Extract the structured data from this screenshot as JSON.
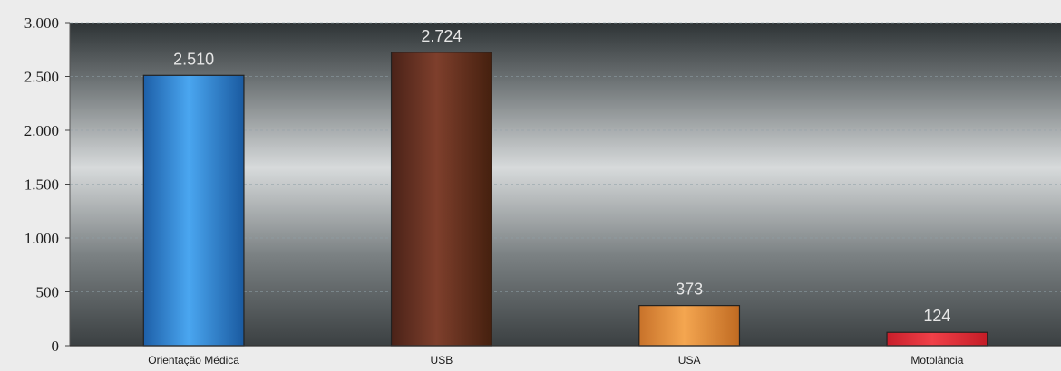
{
  "chart_data": {
    "type": "bar",
    "categories": [
      "Orientação Médica",
      "USB",
      "USA",
      "Motolância"
    ],
    "values": [
      2510,
      2724,
      373,
      124
    ],
    "data_labels": [
      "2.510",
      "2.724",
      "373",
      "124"
    ],
    "title": "",
    "xlabel": "",
    "ylabel": "",
    "ylim": [
      0,
      3000
    ],
    "yticks": [
      {
        "value": 0,
        "label": "0"
      },
      {
        "value": 500,
        "label": "500"
      },
      {
        "value": 1000,
        "label": "1.000"
      },
      {
        "value": 1500,
        "label": "1.500"
      },
      {
        "value": 2000,
        "label": "2.000"
      },
      {
        "value": 2500,
        "label": "2.500"
      },
      {
        "value": 3000,
        "label": "3.000"
      }
    ],
    "grid": true,
    "legend": "none",
    "colors": [
      "#2a86d6",
      "#6b3424",
      "#e8923a",
      "#e8323a"
    ],
    "label_color": "#e6e6e6",
    "plot_background": [
      "#2f3436",
      "#cfd3d4",
      "#3a3f40"
    ]
  }
}
